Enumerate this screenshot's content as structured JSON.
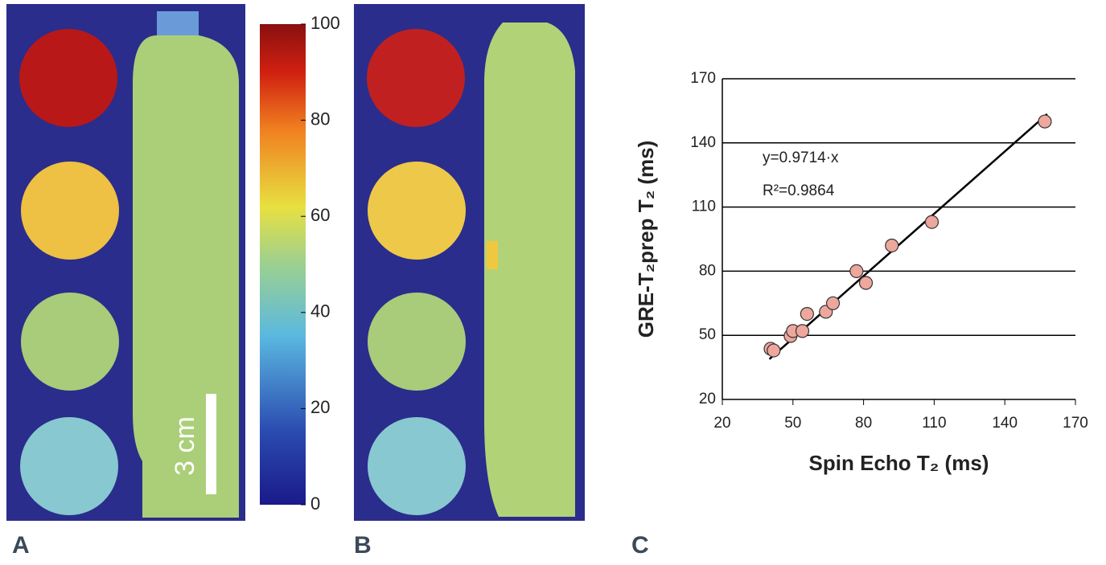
{
  "panels": [
    "A",
    "B",
    "C"
  ],
  "scale_bar_label": "3 cm",
  "chart_data": [
    {
      "type": "colorbar",
      "ylim": [
        0,
        100
      ],
      "yticks": [
        0,
        20,
        40,
        60,
        80,
        100
      ]
    },
    {
      "type": "scatter",
      "xlabel": "Spin Echo T₂ (ms)",
      "ylabel": "GRE-T₂prep T₂ (ms)",
      "annotations": [
        "y=0.9714·x",
        "R²=0.9864"
      ],
      "xlim": [
        20,
        170
      ],
      "ylim": [
        20,
        170
      ],
      "xticks": [
        20,
        50,
        80,
        110,
        140,
        170
      ],
      "yticks": [
        20,
        50,
        80,
        110,
        140,
        170
      ],
      "grid": true,
      "trendline": {
        "slope": 0.9714,
        "x": [
          40,
          158
        ]
      },
      "series": [
        {
          "color": "#eda79c",
          "x": [
            40.5,
            41.8,
            49,
            50,
            54,
            56,
            64,
            67,
            77,
            81,
            92,
            109,
            157
          ],
          "values": [
            43.7,
            42.9,
            49.7,
            52,
            52,
            60,
            61,
            65,
            80,
            74.5,
            92,
            103,
            150
          ]
        }
      ]
    }
  ]
}
